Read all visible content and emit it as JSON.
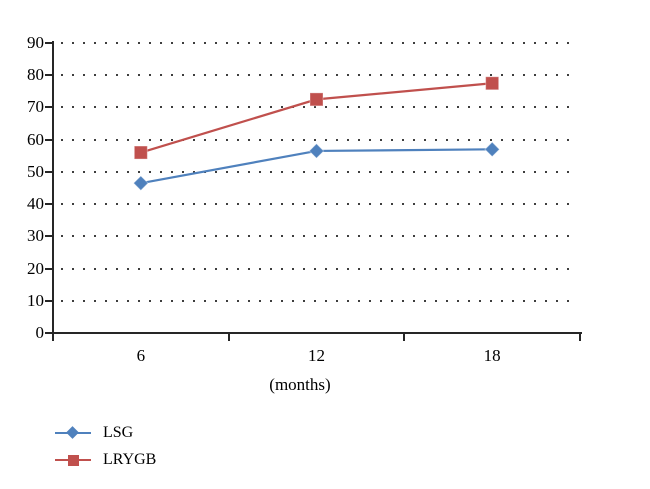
{
  "chart_data": {
    "type": "line",
    "title": "",
    "categories": [
      "6",
      "12",
      "18"
    ],
    "series": [
      {
        "name": "LSG",
        "values": [
          46.5,
          56.5,
          57
        ],
        "color": "#4F81BD",
        "marker": "diamond"
      },
      {
        "name": "LRYGB",
        "values": [
          56,
          72.5,
          77.5
        ],
        "color": "#C0504D",
        "marker": "square"
      }
    ],
    "xlabel": "(months)",
    "ylabel": "",
    "ylim": [
      0,
      90
    ],
    "yticks": [
      0,
      10,
      20,
      30,
      40,
      50,
      60,
      70,
      80,
      90
    ],
    "grid": "dotted-horizontal",
    "legend_position": "bottom-left",
    "axis_color": "#262626",
    "grid_dot_color": "#3d3d3d"
  }
}
